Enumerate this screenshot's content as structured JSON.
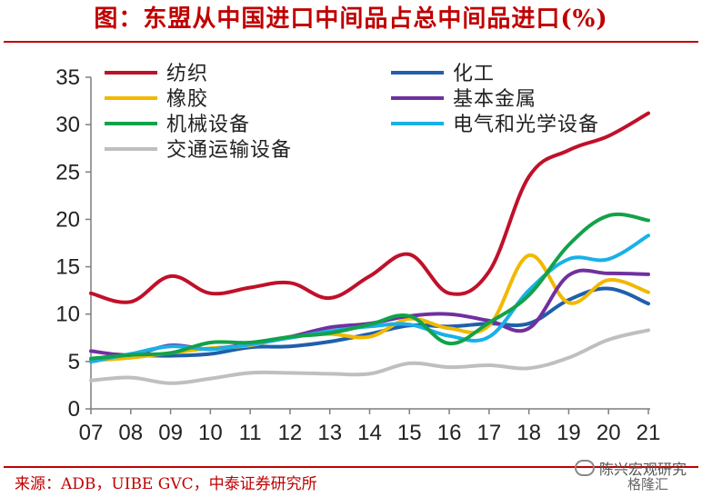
{
  "header": {
    "title": "图：东盟从中国进口中间品占总中间品进口(%)"
  },
  "footer": {
    "source": "来源：ADB，UIBE GVC，中泰证券研究所",
    "watermark": "陈兴宏观研究",
    "badge": "格隆汇"
  },
  "chart_data": {
    "type": "line",
    "x": [
      "07",
      "08",
      "09",
      "10",
      "11",
      "12",
      "13",
      "14",
      "15",
      "16",
      "17",
      "18",
      "19",
      "20",
      "21"
    ],
    "ylim": [
      0,
      35
    ],
    "yticks": [
      0,
      5,
      10,
      15,
      20,
      25,
      30,
      35
    ],
    "grid": false,
    "legend_position": "top",
    "series": [
      {
        "name": "纺织",
        "color": "#c0102a",
        "values": [
          12.2,
          11.3,
          14.0,
          12.2,
          12.8,
          13.3,
          11.7,
          14.0,
          16.3,
          12.2,
          14.5,
          24.5,
          27.3,
          28.8,
          31.2
        ]
      },
      {
        "name": "化工",
        "color": "#1f5fad",
        "values": [
          5.0,
          5.6,
          5.6,
          5.8,
          6.5,
          6.6,
          7.1,
          7.9,
          8.8,
          8.7,
          9.0,
          9.0,
          11.5,
          12.7,
          11.1
        ]
      },
      {
        "name": "橡胶",
        "color": "#f2b800",
        "values": [
          5.1,
          5.4,
          5.9,
          6.4,
          6.7,
          7.6,
          7.9,
          7.6,
          9.5,
          8.5,
          8.8,
          16.2,
          11.2,
          13.6,
          12.3
        ]
      },
      {
        "name": "基本金属",
        "color": "#7030a0",
        "values": [
          6.1,
          5.7,
          6.7,
          6.3,
          6.9,
          7.6,
          8.6,
          9.0,
          9.8,
          10.0,
          9.3,
          8.5,
          14.1,
          14.3,
          14.2
        ]
      },
      {
        "name": "机械设备",
        "color": "#12a24a",
        "values": [
          5.3,
          5.7,
          5.9,
          7.0,
          7.0,
          7.6,
          8.0,
          8.9,
          9.8,
          6.9,
          9.1,
          12.0,
          17.3,
          20.4,
          19.9
        ]
      },
      {
        "name": "电气和光学设备",
        "color": "#19b0e8",
        "values": [
          5.0,
          5.8,
          6.6,
          6.3,
          6.8,
          7.5,
          8.2,
          8.7,
          8.9,
          7.7,
          7.6,
          12.5,
          15.8,
          15.8,
          18.3
        ]
      },
      {
        "name": "交通运输设备",
        "color": "#bfbfbf",
        "values": [
          3.0,
          3.3,
          2.7,
          3.2,
          3.8,
          3.8,
          3.7,
          3.7,
          4.8,
          4.4,
          4.6,
          4.3,
          5.4,
          7.3,
          8.3
        ]
      }
    ]
  }
}
